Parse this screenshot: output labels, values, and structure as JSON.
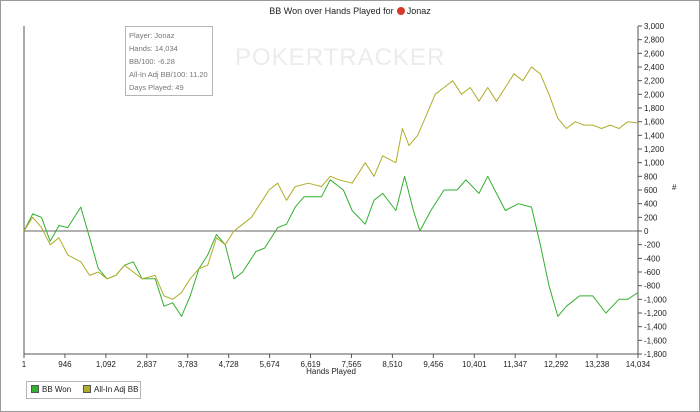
{
  "chart_data": {
    "type": "line",
    "title": "BB Won over Hands Played for",
    "player": "Jonaz",
    "xlabel": "Hands Played",
    "ylabel": "#",
    "xlim": [
      1,
      14034
    ],
    "ylim": [
      -1800,
      3000
    ],
    "y_ticks": [
      -1800,
      -1600,
      -1400,
      -1200,
      -1000,
      -800,
      -600,
      -400,
      -200,
      0,
      200,
      400,
      600,
      800,
      1000,
      1200,
      1400,
      1600,
      1800,
      2000,
      2200,
      2400,
      2600,
      2800,
      3000
    ],
    "x_tick_labels": [
      "1",
      "946",
      "1,092",
      "2,837",
      "3,783",
      "4,728",
      "5,674",
      "6,619",
      "7,565",
      "8,510",
      "9,456",
      "10,401",
      "11,347",
      "12,292",
      "13,238",
      "14,034"
    ],
    "grid": "horizontal-zero-line",
    "legend": "bottom-left",
    "series": [
      {
        "name": "BB Won",
        "color": "#33b02f",
        "points": [
          [
            1,
            0
          ],
          [
            200,
            250
          ],
          [
            400,
            200
          ],
          [
            600,
            -150
          ],
          [
            800,
            80
          ],
          [
            1000,
            50
          ],
          [
            1300,
            350
          ],
          [
            1500,
            -100
          ],
          [
            1700,
            -550
          ],
          [
            1900,
            -700
          ],
          [
            2100,
            -650
          ],
          [
            2300,
            -500
          ],
          [
            2500,
            -450
          ],
          [
            2700,
            -700
          ],
          [
            3000,
            -700
          ],
          [
            3200,
            -1100
          ],
          [
            3400,
            -1050
          ],
          [
            3600,
            -1250
          ],
          [
            3800,
            -950
          ],
          [
            4000,
            -550
          ],
          [
            4200,
            -350
          ],
          [
            4400,
            -50
          ],
          [
            4600,
            -200
          ],
          [
            4800,
            -700
          ],
          [
            5000,
            -600
          ],
          [
            5300,
            -300
          ],
          [
            5500,
            -250
          ],
          [
            5800,
            50
          ],
          [
            6000,
            100
          ],
          [
            6200,
            350
          ],
          [
            6400,
            500
          ],
          [
            6800,
            500
          ],
          [
            7000,
            750
          ],
          [
            7300,
            600
          ],
          [
            7500,
            300
          ],
          [
            7800,
            100
          ],
          [
            8000,
            450
          ],
          [
            8200,
            550
          ],
          [
            8500,
            300
          ],
          [
            8700,
            800
          ],
          [
            8900,
            300
          ],
          [
            9050,
            0
          ],
          [
            9300,
            300
          ],
          [
            9600,
            600
          ],
          [
            9900,
            600
          ],
          [
            10100,
            750
          ],
          [
            10400,
            550
          ],
          [
            10600,
            800
          ],
          [
            10800,
            550
          ],
          [
            11000,
            300
          ],
          [
            11300,
            400
          ],
          [
            11600,
            350
          ],
          [
            11800,
            -200
          ],
          [
            12000,
            -800
          ],
          [
            12200,
            -1250
          ],
          [
            12400,
            -1100
          ],
          [
            12700,
            -950
          ],
          [
            13000,
            -950
          ],
          [
            13300,
            -1200
          ],
          [
            13600,
            -1000
          ],
          [
            13800,
            -1000
          ],
          [
            14034,
            -900
          ]
        ]
      },
      {
        "name": "All-In Adj BB",
        "color": "#b0ad2a",
        "points": [
          [
            1,
            0
          ],
          [
            200,
            200
          ],
          [
            400,
            50
          ],
          [
            600,
            -200
          ],
          [
            800,
            -100
          ],
          [
            1000,
            -350
          ],
          [
            1300,
            -450
          ],
          [
            1500,
            -650
          ],
          [
            1700,
            -600
          ],
          [
            1900,
            -700
          ],
          [
            2100,
            -650
          ],
          [
            2300,
            -500
          ],
          [
            2500,
            -600
          ],
          [
            2700,
            -700
          ],
          [
            3000,
            -650
          ],
          [
            3200,
            -950
          ],
          [
            3400,
            -1000
          ],
          [
            3600,
            -900
          ],
          [
            3800,
            -700
          ],
          [
            4000,
            -550
          ],
          [
            4200,
            -500
          ],
          [
            4400,
            -100
          ],
          [
            4600,
            -200
          ],
          [
            4800,
            0
          ],
          [
            5000,
            100
          ],
          [
            5200,
            200
          ],
          [
            5400,
            400
          ],
          [
            5600,
            600
          ],
          [
            5800,
            700
          ],
          [
            6000,
            450
          ],
          [
            6200,
            650
          ],
          [
            6500,
            700
          ],
          [
            6800,
            650
          ],
          [
            7000,
            800
          ],
          [
            7200,
            750
          ],
          [
            7500,
            700
          ],
          [
            7800,
            1000
          ],
          [
            8000,
            800
          ],
          [
            8200,
            1100
          ],
          [
            8500,
            1000
          ],
          [
            8650,
            1500
          ],
          [
            8800,
            1250
          ],
          [
            9000,
            1400
          ],
          [
            9200,
            1700
          ],
          [
            9400,
            2000
          ],
          [
            9600,
            2100
          ],
          [
            9800,
            2200
          ],
          [
            10000,
            2000
          ],
          [
            10200,
            2100
          ],
          [
            10400,
            1900
          ],
          [
            10600,
            2100
          ],
          [
            10800,
            1900
          ],
          [
            11000,
            2100
          ],
          [
            11200,
            2300
          ],
          [
            11400,
            2200
          ],
          [
            11600,
            2400
          ],
          [
            11800,
            2300
          ],
          [
            12000,
            2000
          ],
          [
            12200,
            1650
          ],
          [
            12400,
            1500
          ],
          [
            12600,
            1600
          ],
          [
            12800,
            1550
          ],
          [
            13000,
            1550
          ],
          [
            13200,
            1500
          ],
          [
            13400,
            1550
          ],
          [
            13600,
            1500
          ],
          [
            13800,
            1600
          ],
          [
            14034,
            1580
          ]
        ]
      }
    ]
  },
  "tooltip": {
    "player": "Player: Jonaz",
    "hands": "Hands: 14,034",
    "bb100": "BB/100: -6.28",
    "allin_bb100": "All-In Adj BB/100: 11.20",
    "days": "Days Played: 49"
  },
  "watermark": {
    "part1": "POKER",
    "part2": "TRACKER"
  },
  "legend_items": [
    "BB Won",
    "All-In Adj BB"
  ],
  "colors": {
    "bb_won": "#33b02f",
    "allin": "#b0ad2a"
  }
}
